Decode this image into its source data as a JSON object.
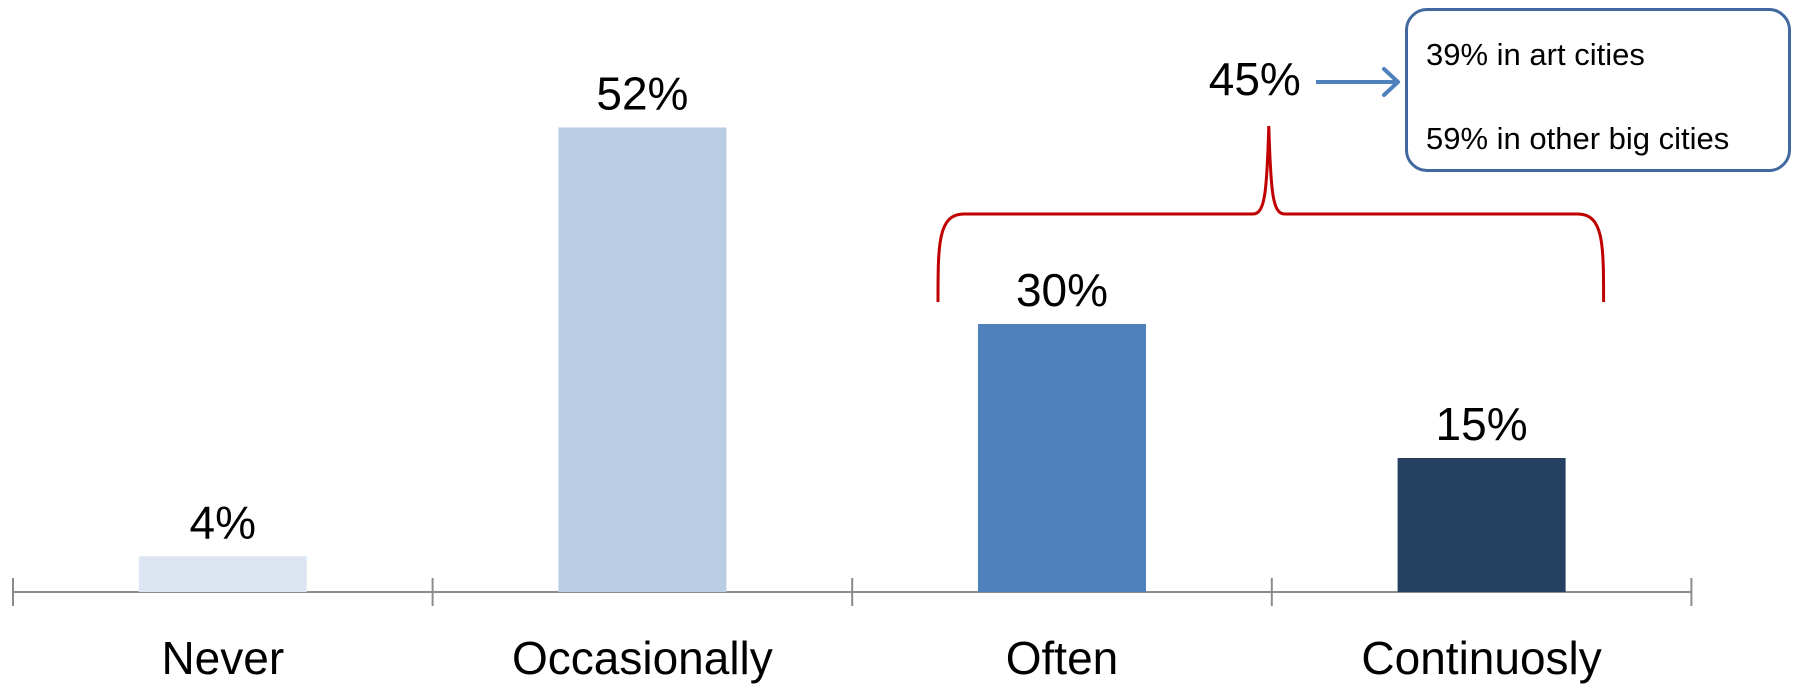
{
  "chart_data": {
    "type": "bar",
    "categories": [
      "Never",
      "Occasionally",
      "Often",
      "Continuosly"
    ],
    "values": [
      4,
      52,
      30,
      15
    ],
    "value_labels": [
      "4%",
      "52%",
      "30%",
      "15%"
    ],
    "colors": [
      "#DCE6F2",
      "#B9CDE5",
      "#4F81BD",
      "#254061"
    ],
    "ylim": [
      0,
      60
    ],
    "grid": false,
    "legend": "none",
    "annotations": {
      "group_bracket": {
        "spans": [
          "Often",
          "Continuosly"
        ],
        "label": "45%",
        "color": "#C00000"
      },
      "arrow_color": "#4F81BD",
      "callout_border_color": "#41689F",
      "callout_lines": [
        "39% in art cities",
        "59% in other big cities"
      ]
    }
  }
}
